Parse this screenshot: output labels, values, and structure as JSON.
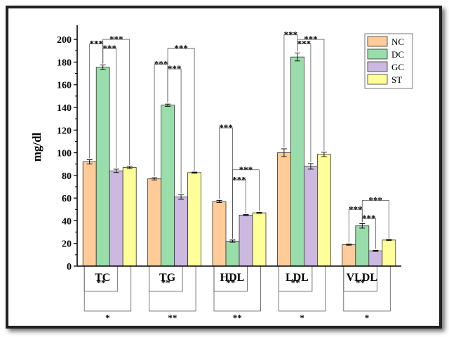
{
  "chart_data": {
    "type": "bar",
    "title": "",
    "xlabel": "",
    "ylabel": "mg/dl",
    "ylim": [
      0,
      210
    ],
    "yticks": [
      0,
      20,
      40,
      60,
      80,
      100,
      120,
      140,
      160,
      180,
      200
    ],
    "grid": false,
    "legend_position": "top-right",
    "categories": [
      "TC",
      "TG",
      "HDL",
      "LDL",
      "VLDL"
    ],
    "series": [
      {
        "name": "NC",
        "color": "#FFCC99",
        "values": [
          92,
          77,
          57,
          100,
          19
        ],
        "errors": [
          2,
          1,
          1,
          3.5,
          0.5
        ]
      },
      {
        "name": "DC",
        "color": "#99DDAA",
        "values": [
          175.5,
          142,
          22,
          184.5,
          35.5
        ],
        "errors": [
          2,
          1,
          1,
          3.5,
          2
        ]
      },
      {
        "name": "GC",
        "color": "#CCB8E0",
        "values": [
          84,
          61,
          45,
          88,
          13.5
        ],
        "errors": [
          1.5,
          2,
          0.5,
          2.5,
          0.5
        ]
      },
      {
        "name": "ST",
        "color": "#FFFF99",
        "values": [
          87,
          82.5,
          47,
          98.5,
          23
        ],
        "errors": [
          1,
          0.5,
          0.5,
          2,
          0.5
        ]
      }
    ],
    "annotations_above": [
      {
        "category": 0,
        "from": 0,
        "to": 1,
        "level": 196,
        "text": "***"
      },
      {
        "category": 0,
        "from": 1,
        "to": 2,
        "level": 192,
        "text": "***"
      },
      {
        "category": 0,
        "from": 1,
        "to": 3,
        "level": 200,
        "text": "***"
      },
      {
        "category": 1,
        "from": 0,
        "to": 1,
        "level": 178,
        "text": "***"
      },
      {
        "category": 1,
        "from": 1,
        "to": 2,
        "level": 174,
        "text": "***"
      },
      {
        "category": 1,
        "from": 1,
        "to": 3,
        "level": 192,
        "text": "***"
      },
      {
        "category": 2,
        "from": 0,
        "to": 1,
        "level": 122,
        "text": "***"
      },
      {
        "category": 2,
        "from": 1,
        "to": 2,
        "level": 76,
        "text": "***"
      },
      {
        "category": 2,
        "from": 1,
        "to": 3,
        "level": 85,
        "text": "***"
      },
      {
        "category": 3,
        "from": 0,
        "to": 1,
        "level": 204,
        "text": "***"
      },
      {
        "category": 3,
        "from": 1,
        "to": 2,
        "level": 196,
        "text": "***"
      },
      {
        "category": 3,
        "from": 1,
        "to": 3,
        "level": 200,
        "text": "***"
      },
      {
        "category": 4,
        "from": 0,
        "to": 1,
        "level": 50,
        "text": "***"
      },
      {
        "category": 4,
        "from": 1,
        "to": 2,
        "level": 42,
        "text": "***"
      },
      {
        "category": 4,
        "from": 1,
        "to": 3,
        "level": 58,
        "text": "***"
      }
    ],
    "annotations_below": [
      {
        "category": 0,
        "from": 0,
        "to": 2,
        "depth": 1,
        "text": "**"
      },
      {
        "category": 0,
        "from": 0,
        "to": 3,
        "depth": 2,
        "text": "*"
      },
      {
        "category": 1,
        "from": 0,
        "to": 2,
        "depth": 1,
        "text": "**"
      },
      {
        "category": 1,
        "from": 0,
        "to": 3,
        "depth": 2,
        "text": "**"
      },
      {
        "category": 2,
        "from": 0,
        "to": 2,
        "depth": 1,
        "text": "**"
      },
      {
        "category": 2,
        "from": 0,
        "to": 3,
        "depth": 2,
        "text": "**"
      },
      {
        "category": 3,
        "from": 0,
        "to": 2,
        "depth": 1,
        "text": "**"
      },
      {
        "category": 3,
        "from": 0,
        "to": 3,
        "depth": 2,
        "text": "*"
      },
      {
        "category": 4,
        "from": 0,
        "to": 2,
        "depth": 1,
        "text": "**"
      },
      {
        "category": 4,
        "from": 0,
        "to": 3,
        "depth": 2,
        "text": "*"
      }
    ]
  }
}
